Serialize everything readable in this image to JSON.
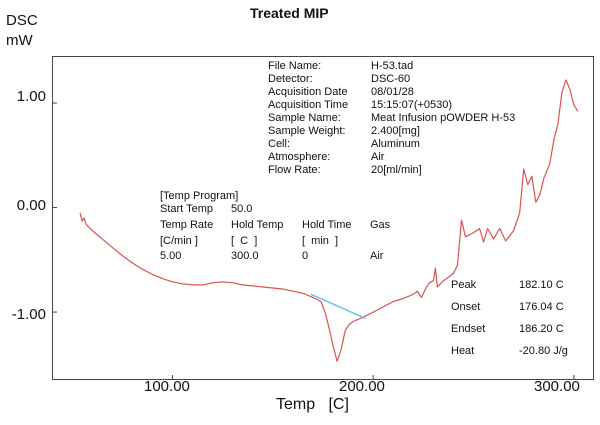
{
  "chart_data": {
    "type": "line",
    "title": "Treated MIP",
    "ylabel_line1": "DSC",
    "ylabel_line2": "mW",
    "xlabel": "Temp   [C]",
    "xlim": [
      40,
      310
    ],
    "ylim": [
      -1.65,
      1.45
    ],
    "x_ticks": [
      {
        "value": 100,
        "label": "100.00"
      },
      {
        "value": 200,
        "label": "200.00"
      },
      {
        "value": 300,
        "label": "300.00"
      }
    ],
    "y_ticks": [
      {
        "value": 1.0,
        "label": "1.00"
      },
      {
        "value": 0.0,
        "label": "0.00"
      },
      {
        "value": -1.0,
        "label": "-1.00"
      }
    ],
    "series": [
      {
        "color": "#d9534f",
        "points": [
          [
            54,
            -0.05
          ],
          [
            55,
            -0.13
          ],
          [
            56,
            -0.1
          ],
          [
            57,
            -0.16
          ],
          [
            60,
            -0.22
          ],
          [
            65,
            -0.3
          ],
          [
            70,
            -0.38
          ],
          [
            75,
            -0.46
          ],
          [
            80,
            -0.53
          ],
          [
            85,
            -0.59
          ],
          [
            90,
            -0.64
          ],
          [
            95,
            -0.68
          ],
          [
            100,
            -0.71
          ],
          [
            105,
            -0.73
          ],
          [
            110,
            -0.74
          ],
          [
            115,
            -0.74
          ],
          [
            120,
            -0.72
          ],
          [
            125,
            -0.71
          ],
          [
            130,
            -0.72
          ],
          [
            135,
            -0.74
          ],
          [
            140,
            -0.75
          ],
          [
            145,
            -0.76
          ],
          [
            150,
            -0.77
          ],
          [
            155,
            -0.78
          ],
          [
            160,
            -0.8
          ],
          [
            165,
            -0.82
          ],
          [
            170,
            -0.86
          ],
          [
            174,
            -0.9
          ],
          [
            176,
            -1.0
          ],
          [
            178,
            -1.15
          ],
          [
            180,
            -1.32
          ],
          [
            182,
            -1.47
          ],
          [
            184,
            -1.36
          ],
          [
            186,
            -1.18
          ],
          [
            188,
            -1.12
          ],
          [
            190,
            -1.09
          ],
          [
            195,
            -1.05
          ],
          [
            200,
            -1.0
          ],
          [
            205,
            -0.95
          ],
          [
            210,
            -0.9
          ],
          [
            215,
            -0.87
          ],
          [
            220,
            -0.83
          ],
          [
            222,
            -0.8
          ],
          [
            224,
            -0.86
          ],
          [
            226,
            -0.78
          ],
          [
            228,
            -0.72
          ],
          [
            230,
            -0.7
          ],
          [
            231,
            -0.58
          ],
          [
            232,
            -0.76
          ],
          [
            235,
            -0.7
          ],
          [
            238,
            -0.66
          ],
          [
            240,
            -0.63
          ],
          [
            242,
            -0.55
          ],
          [
            244,
            -0.12
          ],
          [
            246,
            -0.28
          ],
          [
            250,
            -0.24
          ],
          [
            253,
            -0.2
          ],
          [
            255,
            -0.33
          ],
          [
            257,
            -0.2
          ],
          [
            260,
            -0.3
          ],
          [
            263,
            -0.2
          ],
          [
            266,
            -0.32
          ],
          [
            270,
            -0.22
          ],
          [
            273,
            -0.05
          ],
          [
            275,
            0.37
          ],
          [
            277,
            0.22
          ],
          [
            279,
            0.3
          ],
          [
            281,
            0.05
          ],
          [
            283,
            0.12
          ],
          [
            285,
            0.28
          ],
          [
            288,
            0.42
          ],
          [
            290,
            0.65
          ],
          [
            292,
            0.8
          ],
          [
            294,
            1.1
          ],
          [
            296,
            1.22
          ],
          [
            298,
            1.13
          ],
          [
            300,
            0.98
          ],
          [
            302,
            0.92
          ]
        ]
      },
      {
        "color": "#5bc8e6",
        "points": [
          [
            169,
            -0.83
          ],
          [
            196,
            -1.06
          ]
        ]
      }
    ],
    "info_block": [
      {
        "label": "File Name:",
        "value": "H-53.tad"
      },
      {
        "label": "Detector:",
        "value": "DSC-60"
      },
      {
        "label": "Acquisition Date",
        "value": "08/01/28"
      },
      {
        "label": "Acquisition Time",
        "value": "15:15:07(+0530)"
      },
      {
        "label": "Sample Name:",
        "value": "Meat Infusion pOWDER H-53"
      },
      {
        "label": "Sample Weight:",
        "value": "2.400[mg]"
      },
      {
        "label": "Cell:",
        "value": "Aluminum"
      },
      {
        "label": "Atmosphere:",
        "value": "Air"
      },
      {
        "label": "Flow Rate:",
        "value": "20[ml/min]"
      }
    ],
    "temp_program": {
      "heading": "[Temp Program]",
      "start_label": "Start Temp",
      "start_value": "50.0",
      "headers": [
        "Temp Rate",
        "Hold Temp",
        "Hold Time",
        "Gas"
      ],
      "units": [
        "[C/min ]",
        "[  C  ]",
        "[  min  ]",
        ""
      ],
      "row": [
        "5.00",
        "300.0",
        "0",
        "Air"
      ]
    },
    "peak_results": [
      {
        "label": "Peak",
        "value": "182.10 C"
      },
      {
        "label": "Onset",
        "value": "176.04 C"
      },
      {
        "label": "Endset",
        "value": "186.20 C"
      },
      {
        "label": "Heat",
        "value": "-20.80 J/g"
      }
    ]
  }
}
